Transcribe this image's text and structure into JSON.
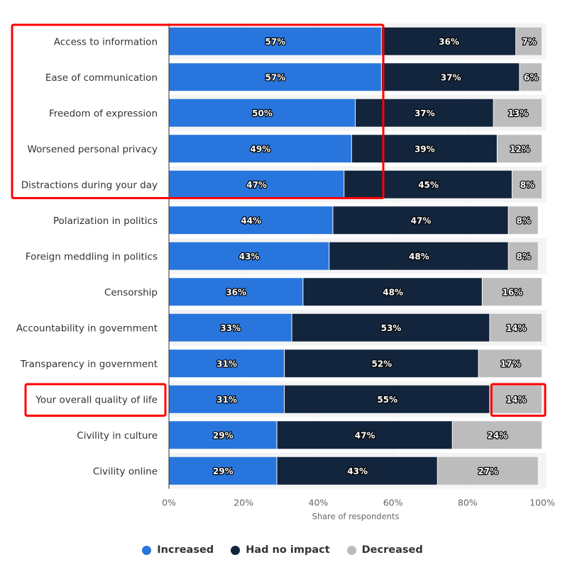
{
  "chart_data": {
    "type": "bar",
    "orientation": "horizontal",
    "stacked": true,
    "categories": [
      "Access to information",
      "Ease of communication",
      "Freedom of expression",
      "Worsened personal privacy",
      "Distractions during your day",
      "Polarization in politics",
      "Foreign meddling in politics",
      "Censorship",
      "Accountability in government",
      "Transparency in government",
      "Your overall quality of life",
      "Civility in culture",
      "Civility online"
    ],
    "series": [
      {
        "name": "Increased",
        "color": "#2876dd",
        "values": [
          57,
          57,
          50,
          49,
          47,
          44,
          43,
          36,
          33,
          31,
          31,
          29,
          29
        ]
      },
      {
        "name": "Had no impact",
        "color": "#13253d",
        "values": [
          36,
          37,
          37,
          39,
          45,
          47,
          48,
          48,
          53,
          52,
          55,
          47,
          43
        ]
      },
      {
        "name": "Decreased",
        "color": "#bcbcbc",
        "values": [
          7,
          6,
          13,
          12,
          8,
          8,
          8,
          16,
          14,
          17,
          14,
          24,
          27
        ]
      }
    ],
    "value_suffix": "%",
    "xlabel": "Share of respondents",
    "xlim": [
      0,
      100
    ],
    "xticks": [
      "0%",
      "20%",
      "40%",
      "60%",
      "80%",
      "100%"
    ],
    "legend_position": "bottom",
    "highlights": [
      {
        "type": "category-group",
        "categories_from": 0,
        "categories_to": 4,
        "color": "#ff0000"
      },
      {
        "type": "category",
        "category_index": 10,
        "color": "#ff0000"
      },
      {
        "type": "segment",
        "category_index": 10,
        "series_index": 2,
        "color": "#ff0000"
      }
    ]
  }
}
